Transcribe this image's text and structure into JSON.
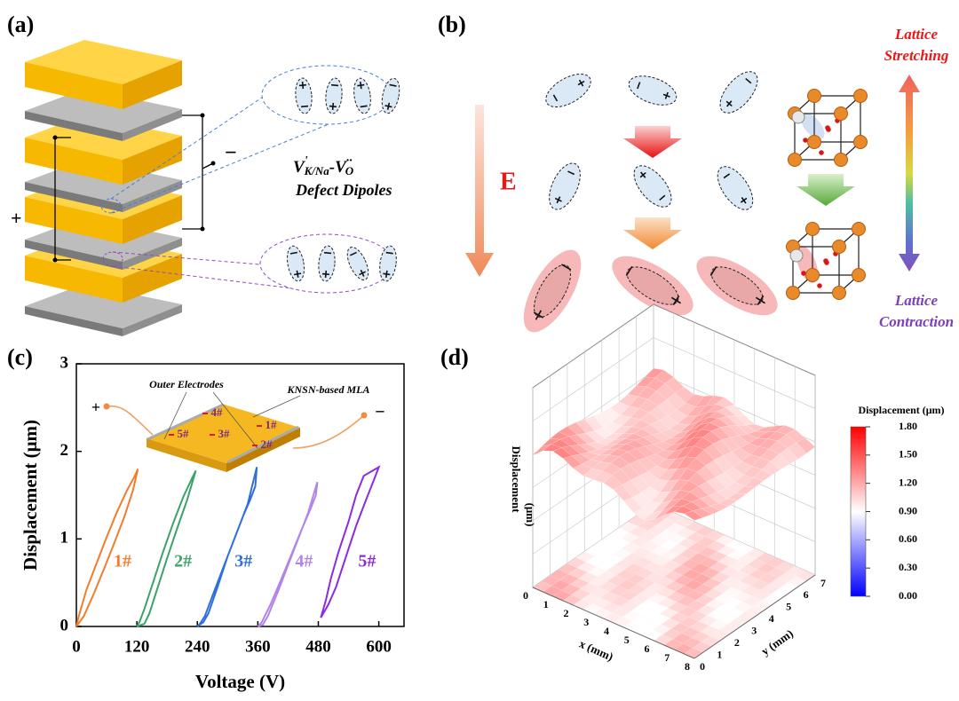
{
  "panel_labels": [
    "(a)",
    "(b)",
    "(c)",
    "(d)"
  ],
  "panel_a": {
    "positive_terminal": "+",
    "negative_terminal": "−",
    "defect_formula": {
      "v1": "V",
      "v1_sup": "'",
      "v1_sub": "K/Na",
      "dash": "-",
      "v2": "V",
      "v2_sup": "··",
      "v2_sub": "O"
    },
    "defect_caption": "Defect Dipoles"
  },
  "panel_b": {
    "field_label": "E",
    "top_label": [
      "Lattice",
      "Stretching"
    ],
    "bottom_label": [
      "Lattice",
      "Contraction"
    ]
  },
  "chart_data": [
    {
      "type": "loops",
      "xlabel": "Voltage (V)",
      "ylabel": "Displacement (μm)",
      "xlim": [
        0,
        650
      ],
      "ylim": [
        0,
        3
      ],
      "xticks": [
        0,
        120,
        240,
        360,
        480,
        600
      ],
      "yticks": [
        0,
        1,
        2,
        3
      ],
      "series": [
        {
          "name": "1#",
          "color": "#f07c2c",
          "x": [
            0,
            15,
            35,
            55,
            75,
            95,
            112,
            122,
            116,
            100,
            80,
            60,
            40,
            20,
            5,
            0
          ],
          "values": [
            0,
            0.12,
            0.38,
            0.66,
            0.95,
            1.25,
            1.55,
            1.8,
            1.72,
            1.55,
            1.3,
            1.02,
            0.72,
            0.42,
            0.12,
            0
          ]
        },
        {
          "name": "2#",
          "color": "#3aa26b",
          "x": [
            120,
            135,
            145,
            160,
            180,
            200,
            220,
            237,
            230,
            212,
            192,
            172,
            152,
            135,
            125,
            120
          ],
          "values": [
            0,
            0.03,
            0.15,
            0.42,
            0.78,
            1.12,
            1.45,
            1.78,
            1.7,
            1.48,
            1.18,
            0.85,
            0.5,
            0.2,
            0.05,
            0
          ]
        },
        {
          "name": "3#",
          "color": "#2f6fd8",
          "x": [
            240,
            252,
            262,
            280,
            300,
            320,
            340,
            358,
            355,
            345,
            330,
            310,
            290,
            270,
            255,
            245,
            240
          ],
          "values": [
            0,
            0.05,
            0.15,
            0.45,
            0.8,
            1.1,
            1.4,
            1.82,
            1.6,
            1.45,
            1.25,
            0.95,
            0.65,
            0.35,
            0.12,
            0.03,
            0
          ]
        },
        {
          "name": "4#",
          "color": "#b384e6",
          "x": [
            360,
            370,
            380,
            400,
            420,
            440,
            460,
            478,
            475,
            465,
            445,
            425,
            405,
            385,
            368,
            360
          ],
          "values": [
            0,
            0.02,
            0.12,
            0.4,
            0.7,
            1.0,
            1.3,
            1.65,
            1.5,
            1.35,
            1.08,
            0.8,
            0.52,
            0.25,
            0.05,
            0
          ]
        },
        {
          "name": "5#",
          "color": "#8b2be2",
          "x": [
            485,
            500,
            515,
            535,
            555,
            575,
            592,
            600,
            570,
            555,
            540,
            520,
            505,
            495,
            485
          ],
          "values": [
            0.1,
            0.25,
            0.45,
            0.8,
            1.15,
            1.45,
            1.7,
            1.82,
            1.72,
            1.5,
            1.2,
            0.85,
            0.55,
            0.3,
            0.1
          ]
        }
      ],
      "inset": {
        "positive": "+",
        "negative": "−",
        "electrodes_label": "Outer Electrodes",
        "device_label": "KNSN-based MLA",
        "site_labels": [
          "1#",
          "2#",
          "3#",
          "4#",
          "5#"
        ]
      }
    },
    {
      "type": "surface3d",
      "xlabel": "x (mm)",
      "ylabel": "y (mm)",
      "zlabel": [
        "Displacement",
        "(μm)"
      ],
      "xlim": [
        0,
        8
      ],
      "xticks": [
        0,
        1,
        2,
        3,
        4,
        5,
        6,
        7,
        8
      ],
      "ylim": [
        0,
        7
      ],
      "yticks": [
        0,
        1,
        2,
        3,
        4,
        5,
        6,
        7
      ],
      "colorbar": {
        "title": "Displacement (μm)",
        "lim": [
          0,
          1.8
        ],
        "colors": [
          "#0000ff",
          "#ffffff",
          "#ff0000"
        ],
        "ticks": [
          {
            "value": 0,
            "label": "0.00"
          },
          {
            "value": 0.3,
            "label": "0.30"
          },
          {
            "value": 0.6,
            "label": "0.60"
          },
          {
            "value": 0.9,
            "label": "0.90"
          },
          {
            "value": 1.2,
            "label": "1.20"
          },
          {
            "value": 1.5,
            "label": "1.50"
          },
          {
            "value": 1.8,
            "label": "1.80"
          }
        ]
      }
    }
  ]
}
